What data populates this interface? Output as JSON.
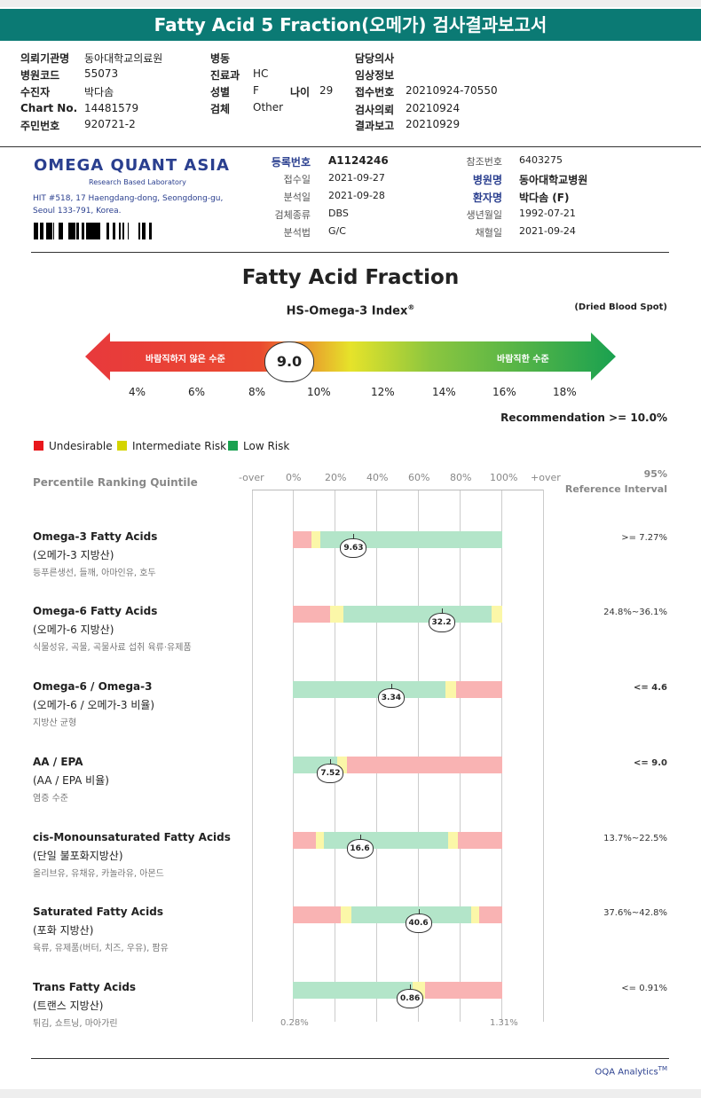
{
  "title": "Fatty Acid 5 Fraction(오메가) 검사결과보고서",
  "header": {
    "col1": [
      {
        "label": "의뢰기관명",
        "value": "동아대학교의료원"
      },
      {
        "label": "병원코드",
        "value": "55073"
      },
      {
        "label": "수진자",
        "value": "박다솜"
      },
      {
        "label": "Chart No.",
        "value": "14481579"
      },
      {
        "label": "주민번호",
        "value": "920721-2"
      }
    ],
    "col2": [
      {
        "label": "병동",
        "value": ""
      },
      {
        "label": "진료과",
        "value": "HC"
      },
      {
        "label": "성별",
        "value": "F"
      },
      {
        "label": "검체",
        "value": "Other"
      }
    ],
    "age": {
      "label": "나이",
      "value": "29"
    },
    "col3": [
      {
        "label": "담당의사",
        "value": ""
      },
      {
        "label": "임상정보",
        "value": ""
      },
      {
        "label": "접수번호",
        "value": "20210924-70550"
      },
      {
        "label": "검사의뢰",
        "value": "20210924"
      },
      {
        "label": "결과보고",
        "value": "20210929"
      }
    ]
  },
  "lab": {
    "name": "OMEGA QUANT ASIA",
    "subtitle": "Research Based Laboratory",
    "address1": "HIT #518, 17 Haengdang-dong, Seongdong-gu,",
    "address2": "Seoul 133-791, Korea."
  },
  "info_left": [
    {
      "label": "등록번호",
      "value": "A1124246"
    },
    {
      "label": "접수일",
      "value": "2021-09-27"
    },
    {
      "label": "분석일",
      "value": "2021-09-28"
    },
    {
      "label": "검체종류",
      "value": "DBS"
    },
    {
      "label": "분석법",
      "value": "G/C"
    }
  ],
  "info_right": [
    {
      "label": "참조번호",
      "value": "6403275"
    },
    {
      "label": "병원명",
      "value": "동아대학교병원"
    },
    {
      "label": "환자명",
      "value": "박다솜 (F)"
    },
    {
      "label": "생년월일",
      "value": "1992-07-21"
    },
    {
      "label": "채혈일",
      "value": "2021-09-24"
    }
  ],
  "main_title": "Fatty Acid Fraction",
  "index_title": "HS-Omega-3 Index",
  "index_reg": "®",
  "dbs_note": "(Dried Blood Spot)",
  "hs_index": {
    "value": 9.0,
    "value_label": "9.0",
    "left_label": "바람직하지 않은 수준",
    "right_label": "바람직한 수준",
    "ticks": [
      "4%",
      "6%",
      "8%",
      "10%",
      "12%",
      "14%",
      "16%",
      "18%"
    ]
  },
  "recommendation": "Recommendation  >= 10.0%",
  "legend": [
    {
      "label": "Undesirable",
      "color": "#e8171c"
    },
    {
      "label": "Intermediate Risk",
      "color": "#d4d400"
    },
    {
      "label": "Low Risk",
      "color": "#1aa150"
    }
  ],
  "quintile_label": "Percentile Ranking Quintile",
  "scale_ticks": [
    "-over",
    "0%",
    "20%",
    "40%",
    "60%",
    "80%",
    "100%",
    "+over"
  ],
  "ref_header_1": "95%",
  "ref_header_2": "Reference Interval",
  "colors": {
    "red": "#f9b3b3",
    "yellow": "#fbf7a8",
    "green": "#b3e5c9"
  },
  "rows": [
    {
      "name": "Omega-3 Fatty Acids",
      "kr": "(오메가-3 지방산)",
      "desc": "등푸른생선, 들깨, 아마인유, 호두",
      "ref": "&gt;= 7.27%",
      "value": "9.63",
      "pos": 29,
      "bar_start": 0,
      "bar_end": 100,
      "segs": [
        {
          "c": "red",
          "from": 0,
          "to": 9
        },
        {
          "c": "yellow",
          "from": 9,
          "to": 13
        },
        {
          "c": "green",
          "from": 13,
          "to": 100
        }
      ],
      "ref_bold": false
    },
    {
      "name": "Omega-6 Fatty Acids",
      "kr": "(오메가-6 지방산)",
      "desc": "식물성유, 곡물, 곡물사료 섭취 육류·유제품",
      "ref": "24.8%~36.1%",
      "value": "32.2",
      "pos": 71,
      "bar_start": 0,
      "bar_end": 100,
      "segs": [
        {
          "c": "red",
          "from": 0,
          "to": 18
        },
        {
          "c": "yellow",
          "from": 18,
          "to": 24
        },
        {
          "c": "green",
          "from": 24,
          "to": 95
        },
        {
          "c": "yellow",
          "from": 95,
          "to": 100
        }
      ],
      "ref_bold": false
    },
    {
      "name": "Omega-6 / Omega-3",
      "kr": "(오메가-6 / 오메가-3 비율)",
      "desc": "지방산 균형",
      "ref": "&lt;= 4.6",
      "value": "3.34",
      "pos": 47,
      "bar_start": 0,
      "bar_end": 100,
      "segs": [
        {
          "c": "green",
          "from": 0,
          "to": 73
        },
        {
          "c": "yellow",
          "from": 73,
          "to": 78
        },
        {
          "c": "red",
          "from": 78,
          "to": 100
        }
      ],
      "ref_bold": true
    },
    {
      "name": "AA / EPA",
      "kr": "(AA / EPA 비율)",
      "desc": "염증 수준",
      "ref": "&lt;= 9.0",
      "value": "7.52",
      "pos": 18,
      "bar_start": 0,
      "bar_end": 100,
      "segs": [
        {
          "c": "green",
          "from": 0,
          "to": 21
        },
        {
          "c": "yellow",
          "from": 21,
          "to": 26
        },
        {
          "c": "red",
          "from": 26,
          "to": 100
        }
      ],
      "ref_bold": true
    },
    {
      "name": "cis-Monounsaturated Fatty Acids",
      "kr": "(단일 불포화지방산)",
      "desc": "올리브유, 유채유, 카놀라유, 아몬드",
      "ref": "13.7%~22.5%",
      "value": "16.6",
      "pos": 32,
      "bar_start": 0,
      "bar_end": 100,
      "segs": [
        {
          "c": "red",
          "from": 0,
          "to": 11
        },
        {
          "c": "yellow",
          "from": 11,
          "to": 15
        },
        {
          "c": "green",
          "from": 15,
          "to": 74
        },
        {
          "c": "yellow",
          "from": 74,
          "to": 79
        },
        {
          "c": "red",
          "from": 79,
          "to": 100
        }
      ],
      "ref_bold": false
    },
    {
      "name": "Saturated Fatty Acids",
      "kr": "(포화 지방산)",
      "desc": "육류, 유제품(버터, 치즈, 우유), 팜유",
      "ref": "37.6%~42.8%",
      "value": "40.6",
      "pos": 60,
      "bar_start": 0,
      "bar_end": 100,
      "segs": [
        {
          "c": "red",
          "from": 0,
          "to": 23
        },
        {
          "c": "yellow",
          "from": 23,
          "to": 28
        },
        {
          "c": "green",
          "from": 28,
          "to": 85
        },
        {
          "c": "yellow",
          "from": 85,
          "to": 89
        },
        {
          "c": "red",
          "from": 89,
          "to": 100
        }
      ],
      "ref_bold": false
    },
    {
      "name": "Trans Fatty Acids",
      "kr": "(트랜스 지방산)",
      "desc": "튀김, 쇼트닝, 마아가린",
      "ref": "&lt;= 0.91%",
      "value": "0.86",
      "pos": 56,
      "bar_start": 0,
      "bar_end": 100,
      "segs": [
        {
          "c": "green",
          "from": 0,
          "to": 57
        },
        {
          "c": "yellow",
          "from": 57,
          "to": 63
        },
        {
          "c": "red",
          "from": 63,
          "to": 100
        }
      ],
      "ref_bold": false
    }
  ],
  "trans_ticks": [
    "0.28%",
    "1.31%"
  ],
  "footer": "OQA Analytics",
  "footer_tm": "TM"
}
